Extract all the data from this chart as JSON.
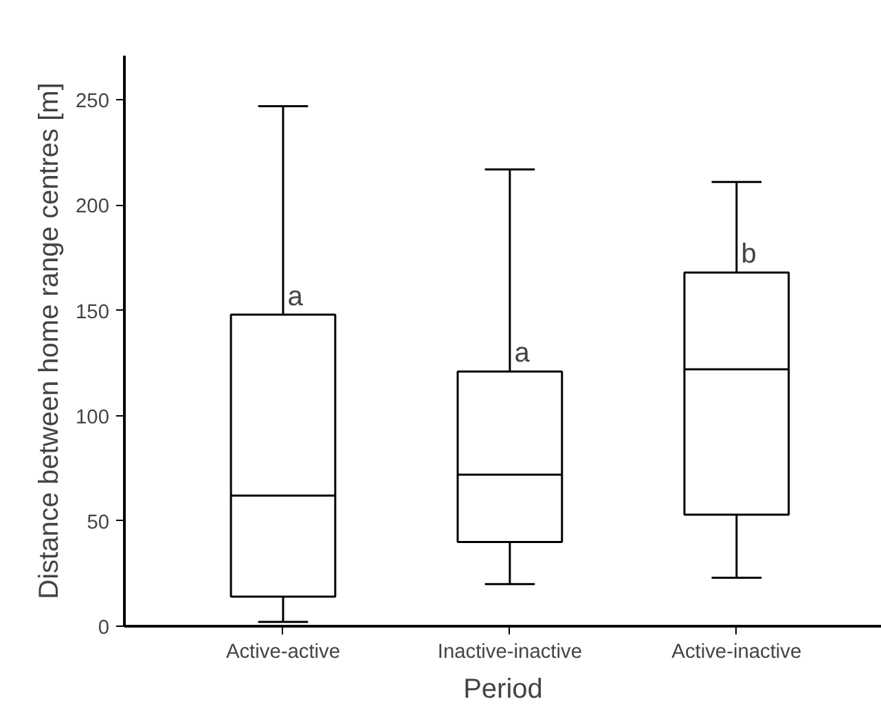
{
  "chart_data": {
    "type": "box",
    "xlabel": "Period",
    "ylabel": "Distance between home range centres [m]",
    "categories": [
      "Active-active",
      "Inactive-inactive",
      "Active-inactive"
    ],
    "boxes": [
      {
        "low": 2,
        "q1": 14,
        "median": 62,
        "q3": 148,
        "high": 247
      },
      {
        "low": 20,
        "q1": 40,
        "median": 72,
        "q3": 121,
        "high": 217
      },
      {
        "low": 23,
        "q1": 53,
        "median": 122,
        "q3": 168,
        "high": 211
      }
    ],
    "ylim": [
      0,
      271
    ],
    "yticks": [
      0,
      50,
      100,
      150,
      200,
      250
    ],
    "grid": false,
    "annotations": [
      {
        "text": "a",
        "x": "Active-active",
        "y": 148
      },
      {
        "text": "a",
        "x": "Inactive-inactive",
        "y": 121
      },
      {
        "text": "b",
        "x": "Active-inactive",
        "y": 168
      }
    ]
  }
}
